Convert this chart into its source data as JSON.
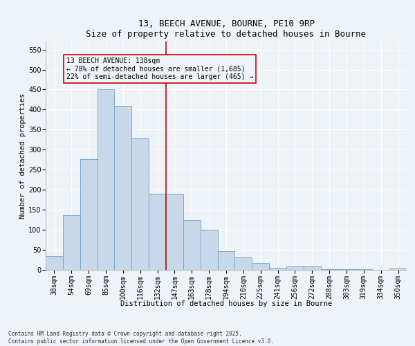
{
  "title1": "13, BEECH AVENUE, BOURNE, PE10 9RP",
  "title2": "Size of property relative to detached houses in Bourne",
  "xlabel": "Distribution of detached houses by size in Bourne",
  "ylabel": "Number of detached properties",
  "bar_color": "#c8d8eb",
  "bar_edge_color": "#7aa8c8",
  "categories": [
    "38sqm",
    "54sqm",
    "69sqm",
    "85sqm",
    "100sqm",
    "116sqm",
    "132sqm",
    "147sqm",
    "163sqm",
    "178sqm",
    "194sqm",
    "210sqm",
    "225sqm",
    "241sqm",
    "256sqm",
    "272sqm",
    "288sqm",
    "303sqm",
    "319sqm",
    "334sqm",
    "350sqm"
  ],
  "values": [
    35,
    136,
    276,
    450,
    409,
    328,
    190,
    190,
    124,
    101,
    46,
    31,
    18,
    5,
    9,
    9,
    2,
    1,
    1,
    0,
    3
  ],
  "ylim": [
    0,
    570
  ],
  "yticks": [
    0,
    50,
    100,
    150,
    200,
    250,
    300,
    350,
    400,
    450,
    500,
    550
  ],
  "vline_index": 6.5,
  "annotation_line1": "13 BEECH AVENUE: 138sqm",
  "annotation_line2": "← 78% of detached houses are smaller (1,685)",
  "annotation_line3": "22% of semi-detached houses are larger (465) →",
  "footer1": "Contains HM Land Registry data © Crown copyright and database right 2025.",
  "footer2": "Contains public sector information licensed under the Open Government Licence v3.0.",
  "bg_color": "#eef3f8",
  "grid_color": "#ffffff",
  "vline_color": "#cc0000",
  "title_fontsize": 9,
  "axis_label_fontsize": 7.5,
  "tick_fontsize": 7,
  "annotation_fontsize": 7,
  "footer_fontsize": 5.5
}
